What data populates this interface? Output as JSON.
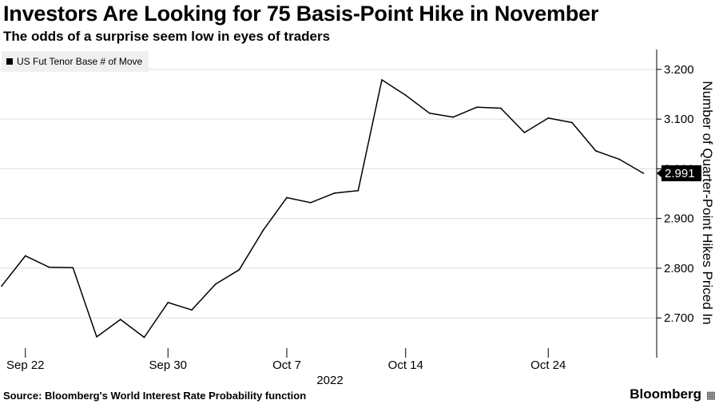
{
  "header": {
    "title": "Investors Are Looking for 75 Basis-Point Hike in November",
    "subtitle": "The odds of a surprise seem low in eyes of traders"
  },
  "footer": {
    "source": "Source: Bloomberg's World Interest Rate Probability function",
    "brand": "Bloomberg",
    "brand_icon": "bloomberg-chart-icon"
  },
  "colors": {
    "line": "#000000",
    "grid": "#dddddd",
    "legend_bg": "#f0f0f0",
    "last_label_bg": "#000000",
    "last_label_text": "#ffffff"
  },
  "chart_data": {
    "type": "line",
    "title": "Investors Are Looking for 75 Basis-Point Hike in November",
    "subtitle": "The odds of a surprise seem low in eyes of traders",
    "xlabel": "2022",
    "ylabel": "Number of Quarter-Point Hikes Priced In",
    "ylim": [
      2.62,
      3.24
    ],
    "yticks": [
      2.7,
      2.8,
      2.9,
      3.0,
      3.1,
      3.2
    ],
    "ytick_labels": [
      "2.700",
      "2.800",
      "2.900",
      "3.000",
      "3.100",
      "3.200"
    ],
    "xticks": [
      {
        "date": "2022-09-22",
        "label": "Sep 22"
      },
      {
        "date": "2022-09-30",
        "label": "Sep 30"
      },
      {
        "date": "2022-10-07",
        "label": "Oct 7"
      },
      {
        "date": "2022-10-14",
        "label": "Oct 14"
      },
      {
        "date": "2022-10-24",
        "label": "Oct 24"
      }
    ],
    "x_year_label": "2022",
    "grid": true,
    "legend_position": "top-left",
    "last_value_label": "2.991",
    "series": [
      {
        "name": "US Fut Tenor Base # of Move",
        "color": "#000000",
        "x": [
          "2022-09-21",
          "2022-09-22",
          "2022-09-23",
          "2022-09-26",
          "2022-09-27",
          "2022-09-28",
          "2022-09-29",
          "2022-09-30",
          "2022-10-03",
          "2022-10-04",
          "2022-10-05",
          "2022-10-06",
          "2022-10-07",
          "2022-10-10",
          "2022-10-11",
          "2022-10-12",
          "2022-10-13",
          "2022-10-14",
          "2022-10-17",
          "2022-10-18",
          "2022-10-19",
          "2022-10-20",
          "2022-10-21",
          "2022-10-24",
          "2022-10-25",
          "2022-10-26",
          "2022-10-27",
          "2022-10-28"
        ],
        "values": [
          2.764,
          2.825,
          2.802,
          2.801,
          2.662,
          2.697,
          2.661,
          2.731,
          2.716,
          2.768,
          2.797,
          2.876,
          2.942,
          2.932,
          2.951,
          2.956,
          3.179,
          3.148,
          3.112,
          3.104,
          3.124,
          3.122,
          3.073,
          3.102,
          3.093,
          3.036,
          3.019,
          2.991
        ]
      }
    ]
  }
}
